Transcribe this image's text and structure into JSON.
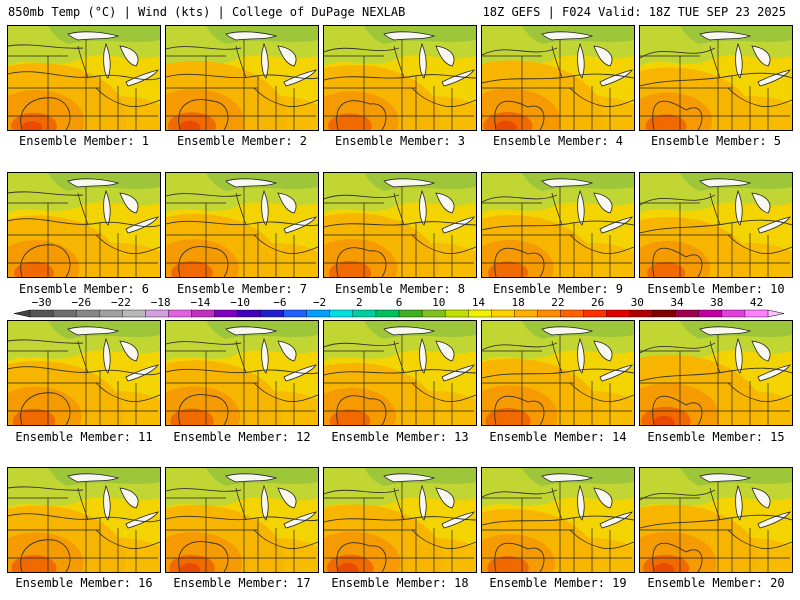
{
  "header": {
    "left_title": "850mb Temp (°C) | Wind (kts) | College of DuPage NEXLAB",
    "right_title": "18Z GEFS | F024 Valid: 18Z TUE SEP 23 2025"
  },
  "panel_label_prefix": "Ensemble Member:",
  "members": [
    {
      "number": "1",
      "warm": 0.72
    },
    {
      "number": "2",
      "warm": 0.78
    },
    {
      "number": "3",
      "warm": 0.66
    },
    {
      "number": "4",
      "warm": 0.8
    },
    {
      "number": "5",
      "warm": 0.58
    },
    {
      "number": "6",
      "warm": 0.55
    },
    {
      "number": "7",
      "warm": 0.6
    },
    {
      "number": "8",
      "warm": 0.62
    },
    {
      "number": "9",
      "warm": 0.56
    },
    {
      "number": "10",
      "warm": 0.5
    },
    {
      "number": "11",
      "warm": 0.63
    },
    {
      "number": "12",
      "warm": 0.65
    },
    {
      "number": "13",
      "warm": 0.57
    },
    {
      "number": "14",
      "warm": 0.7
    },
    {
      "number": "15",
      "warm": 0.82
    },
    {
      "number": "16",
      "warm": 0.7
    },
    {
      "number": "17",
      "warm": 0.72
    },
    {
      "number": "18",
      "warm": 0.74
    },
    {
      "number": "19",
      "warm": 0.6
    },
    {
      "number": "20",
      "warm": 0.73
    }
  ],
  "colorbar": {
    "tick_labels": [
      "−30",
      "−26",
      "−22",
      "−18",
      "−14",
      "−10",
      "−6",
      "−2",
      "2",
      "6",
      "10",
      "14",
      "18",
      "22",
      "26",
      "30",
      "34",
      "38",
      "42"
    ],
    "colors": [
      "#555555",
      "#6e6e6e",
      "#888888",
      "#a0a0a0",
      "#b8b8b8",
      "#d0a0e0",
      "#e060e0",
      "#c030c0",
      "#8000c0",
      "#4000c0",
      "#2020d0",
      "#2060ff",
      "#00a0ff",
      "#00e0e0",
      "#00d0a0",
      "#00c060",
      "#40b020",
      "#80c020",
      "#c0e000",
      "#f0f000",
      "#ffd000",
      "#ffb000",
      "#ff8c00",
      "#ff6000",
      "#ff3000",
      "#e00000",
      "#b00000",
      "#800000",
      "#a00050",
      "#c000a0",
      "#e040e0",
      "#ff80ff"
    ]
  }
}
